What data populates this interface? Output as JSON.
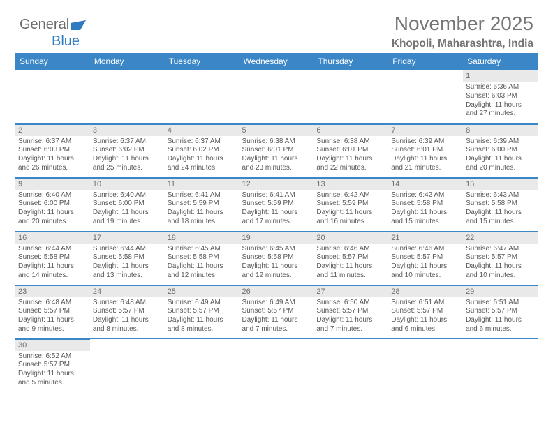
{
  "logo": {
    "part1": "General",
    "part2": "Blue"
  },
  "header": {
    "title": "November 2025",
    "subtitle": "Khopoli, Maharashtra, India"
  },
  "colors": {
    "accent": "#3a86c6",
    "header_bg": "#3a86c6",
    "daynum_bg": "#e9e9e9",
    "text": "#585858",
    "title": "#757575"
  },
  "day_labels": [
    "Sunday",
    "Monday",
    "Tuesday",
    "Wednesday",
    "Thursday",
    "Friday",
    "Saturday"
  ],
  "weeks": [
    [
      null,
      null,
      null,
      null,
      null,
      null,
      {
        "n": "1",
        "sr": "Sunrise: 6:36 AM",
        "ss": "Sunset: 6:03 PM",
        "dl": "Daylight: 11 hours and 27 minutes."
      }
    ],
    [
      {
        "n": "2",
        "sr": "Sunrise: 6:37 AM",
        "ss": "Sunset: 6:03 PM",
        "dl": "Daylight: 11 hours and 26 minutes."
      },
      {
        "n": "3",
        "sr": "Sunrise: 6:37 AM",
        "ss": "Sunset: 6:02 PM",
        "dl": "Daylight: 11 hours and 25 minutes."
      },
      {
        "n": "4",
        "sr": "Sunrise: 6:37 AM",
        "ss": "Sunset: 6:02 PM",
        "dl": "Daylight: 11 hours and 24 minutes."
      },
      {
        "n": "5",
        "sr": "Sunrise: 6:38 AM",
        "ss": "Sunset: 6:01 PM",
        "dl": "Daylight: 11 hours and 23 minutes."
      },
      {
        "n": "6",
        "sr": "Sunrise: 6:38 AM",
        "ss": "Sunset: 6:01 PM",
        "dl": "Daylight: 11 hours and 22 minutes."
      },
      {
        "n": "7",
        "sr": "Sunrise: 6:39 AM",
        "ss": "Sunset: 6:01 PM",
        "dl": "Daylight: 11 hours and 21 minutes."
      },
      {
        "n": "8",
        "sr": "Sunrise: 6:39 AM",
        "ss": "Sunset: 6:00 PM",
        "dl": "Daylight: 11 hours and 20 minutes."
      }
    ],
    [
      {
        "n": "9",
        "sr": "Sunrise: 6:40 AM",
        "ss": "Sunset: 6:00 PM",
        "dl": "Daylight: 11 hours and 20 minutes."
      },
      {
        "n": "10",
        "sr": "Sunrise: 6:40 AM",
        "ss": "Sunset: 6:00 PM",
        "dl": "Daylight: 11 hours and 19 minutes."
      },
      {
        "n": "11",
        "sr": "Sunrise: 6:41 AM",
        "ss": "Sunset: 5:59 PM",
        "dl": "Daylight: 11 hours and 18 minutes."
      },
      {
        "n": "12",
        "sr": "Sunrise: 6:41 AM",
        "ss": "Sunset: 5:59 PM",
        "dl": "Daylight: 11 hours and 17 minutes."
      },
      {
        "n": "13",
        "sr": "Sunrise: 6:42 AM",
        "ss": "Sunset: 5:59 PM",
        "dl": "Daylight: 11 hours and 16 minutes."
      },
      {
        "n": "14",
        "sr": "Sunrise: 6:42 AM",
        "ss": "Sunset: 5:58 PM",
        "dl": "Daylight: 11 hours and 15 minutes."
      },
      {
        "n": "15",
        "sr": "Sunrise: 6:43 AM",
        "ss": "Sunset: 5:58 PM",
        "dl": "Daylight: 11 hours and 15 minutes."
      }
    ],
    [
      {
        "n": "16",
        "sr": "Sunrise: 6:44 AM",
        "ss": "Sunset: 5:58 PM",
        "dl": "Daylight: 11 hours and 14 minutes."
      },
      {
        "n": "17",
        "sr": "Sunrise: 6:44 AM",
        "ss": "Sunset: 5:58 PM",
        "dl": "Daylight: 11 hours and 13 minutes."
      },
      {
        "n": "18",
        "sr": "Sunrise: 6:45 AM",
        "ss": "Sunset: 5:58 PM",
        "dl": "Daylight: 11 hours and 12 minutes."
      },
      {
        "n": "19",
        "sr": "Sunrise: 6:45 AM",
        "ss": "Sunset: 5:58 PM",
        "dl": "Daylight: 11 hours and 12 minutes."
      },
      {
        "n": "20",
        "sr": "Sunrise: 6:46 AM",
        "ss": "Sunset: 5:57 PM",
        "dl": "Daylight: 11 hours and 11 minutes."
      },
      {
        "n": "21",
        "sr": "Sunrise: 6:46 AM",
        "ss": "Sunset: 5:57 PM",
        "dl": "Daylight: 11 hours and 10 minutes."
      },
      {
        "n": "22",
        "sr": "Sunrise: 6:47 AM",
        "ss": "Sunset: 5:57 PM",
        "dl": "Daylight: 11 hours and 10 minutes."
      }
    ],
    [
      {
        "n": "23",
        "sr": "Sunrise: 6:48 AM",
        "ss": "Sunset: 5:57 PM",
        "dl": "Daylight: 11 hours and 9 minutes."
      },
      {
        "n": "24",
        "sr": "Sunrise: 6:48 AM",
        "ss": "Sunset: 5:57 PM",
        "dl": "Daylight: 11 hours and 8 minutes."
      },
      {
        "n": "25",
        "sr": "Sunrise: 6:49 AM",
        "ss": "Sunset: 5:57 PM",
        "dl": "Daylight: 11 hours and 8 minutes."
      },
      {
        "n": "26",
        "sr": "Sunrise: 6:49 AM",
        "ss": "Sunset: 5:57 PM",
        "dl": "Daylight: 11 hours and 7 minutes."
      },
      {
        "n": "27",
        "sr": "Sunrise: 6:50 AM",
        "ss": "Sunset: 5:57 PM",
        "dl": "Daylight: 11 hours and 7 minutes."
      },
      {
        "n": "28",
        "sr": "Sunrise: 6:51 AM",
        "ss": "Sunset: 5:57 PM",
        "dl": "Daylight: 11 hours and 6 minutes."
      },
      {
        "n": "29",
        "sr": "Sunrise: 6:51 AM",
        "ss": "Sunset: 5:57 PM",
        "dl": "Daylight: 11 hours and 6 minutes."
      }
    ],
    [
      {
        "n": "30",
        "sr": "Sunrise: 6:52 AM",
        "ss": "Sunset: 5:57 PM",
        "dl": "Daylight: 11 hours and 5 minutes."
      },
      null,
      null,
      null,
      null,
      null,
      null
    ]
  ]
}
